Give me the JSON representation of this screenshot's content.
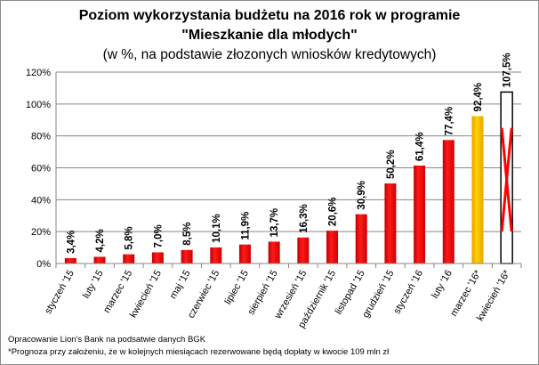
{
  "chart_data": {
    "type": "bar",
    "title": "Poziom wykorzystania budżetu na 2016 rok w programie",
    "title_line2": "\"Mieszkanie dla młodych\"",
    "subtitle": "(w %, na podstawie złozonych wniosków kredytowych)",
    "categories": [
      "styczeń '15",
      "luty '15",
      "marzec '15",
      "kwiecień '15",
      "maj '15",
      "czerwiec '15",
      "lipiec '15",
      "sierpień '15",
      "wrzesień '15",
      "październik '15",
      "listopad '15",
      "grudzień '15",
      "styczeń '16",
      "luty '16",
      "marzec '16*",
      "kwiecień '16*"
    ],
    "values": [
      3.4,
      4.2,
      5.8,
      7.0,
      8.5,
      10.1,
      11.9,
      13.7,
      16.3,
      20.6,
      30.9,
      50.2,
      61.4,
      77.4,
      92.4,
      107.5
    ],
    "data_labels": [
      "3,4%",
      "4,2%",
      "5,8%",
      "7,0%",
      "8,5%",
      "10,1%",
      "11,9%",
      "13,7%",
      "16,3%",
      "20,6%",
      "30,9%",
      "50,2%",
      "61,4%",
      "77,4%",
      "92,4%",
      "107,5%"
    ],
    "bar_styles": [
      "actual",
      "actual",
      "actual",
      "actual",
      "actual",
      "actual",
      "actual",
      "actual",
      "actual",
      "actual",
      "actual",
      "actual",
      "actual",
      "actual",
      "forecast",
      "forecast-over-budget"
    ],
    "colors": {
      "actual": "#ff0000",
      "forecast": "#ffc000",
      "over_budget_outline": "#000000",
      "cross": "#ff0000",
      "grid": "#868686"
    },
    "ylim": [
      0,
      120
    ],
    "yticks": [
      0,
      20,
      40,
      60,
      80,
      100,
      120
    ],
    "ytick_labels": [
      "0%",
      "20%",
      "40%",
      "60%",
      "80%",
      "100%",
      "120%"
    ],
    "grid": true,
    "xlabel": "",
    "ylabel": ""
  },
  "footnotes": {
    "source": "Opracowanie Lion's Bank na podsatwie danych BGK",
    "note": "*Prognoza przy założeniu, że w kolejnych miesiącach rezerwowane będą dopłaty w kwocie 109 mln zł"
  }
}
